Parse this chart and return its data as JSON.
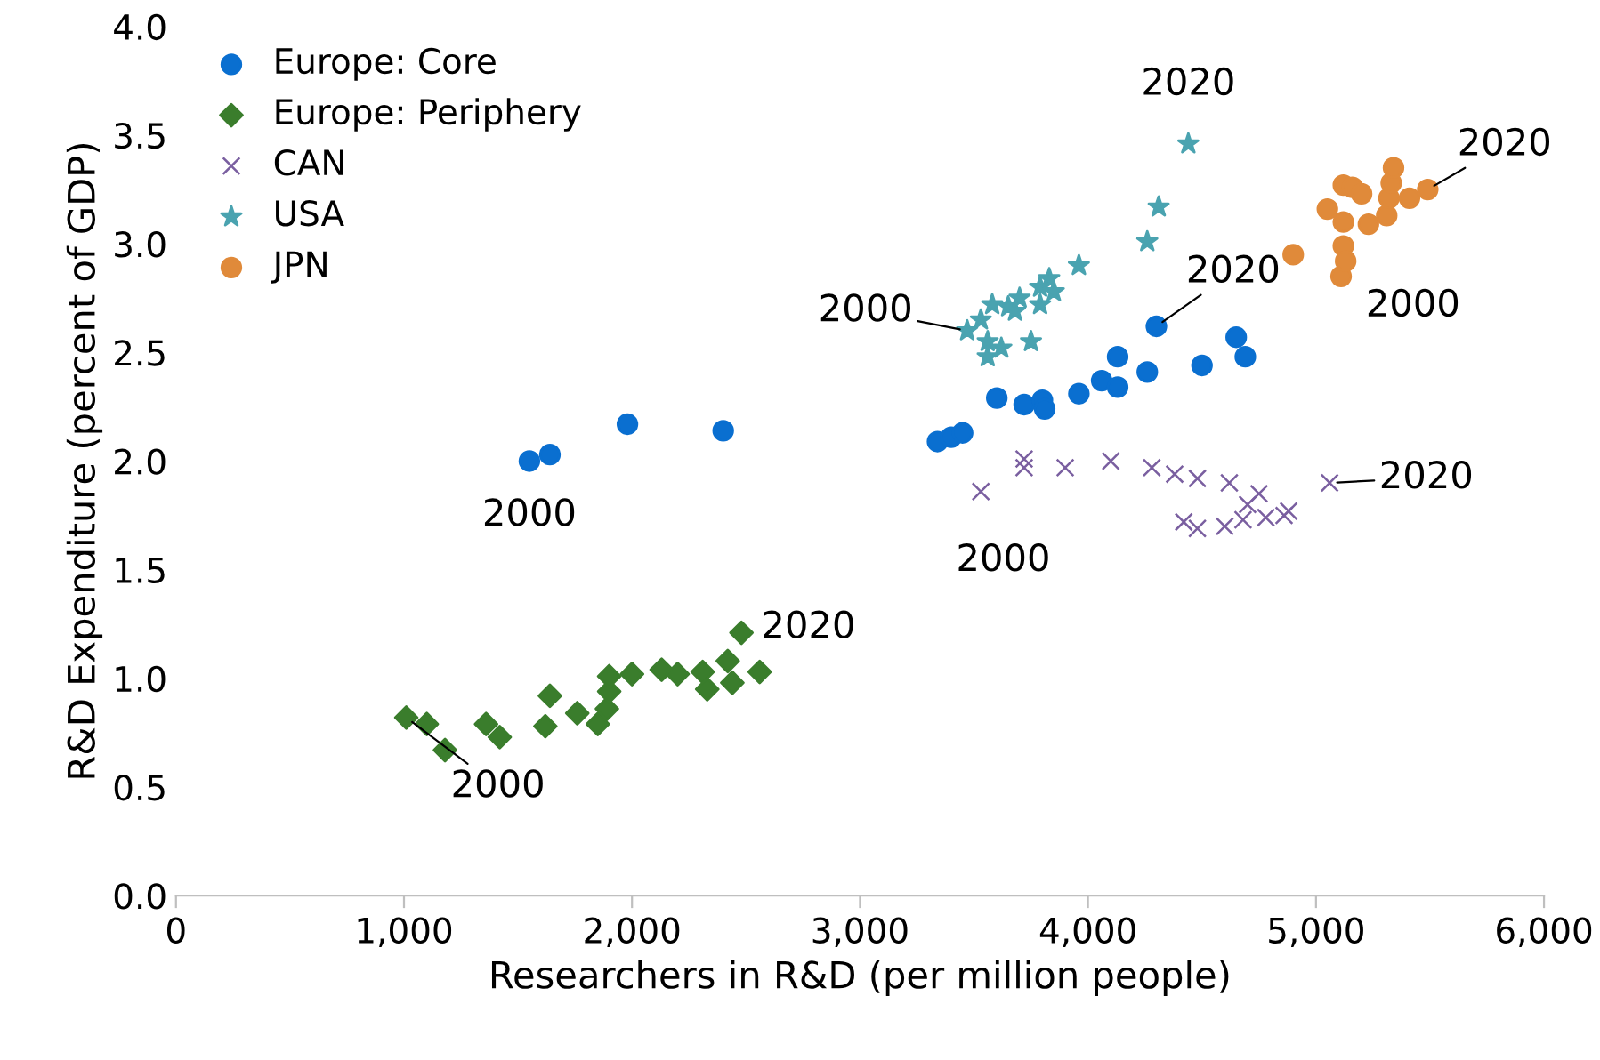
{
  "chart_data": {
    "type": "scatter",
    "xlabel": "Researchers in R&D (per million people)",
    "ylabel": "R&D Expenditure (percent of GDP)",
    "xlim": [
      0,
      6000
    ],
    "xticks": [
      {
        "value": 0,
        "label": "0"
      },
      {
        "value": 1000,
        "label": "1,000"
      },
      {
        "value": 2000,
        "label": "2,000"
      },
      {
        "value": 3000,
        "label": "3,000"
      },
      {
        "value": 4000,
        "label": "4,000"
      },
      {
        "value": 5000,
        "label": "5,000"
      },
      {
        "value": 6000,
        "label": "6,000"
      }
    ],
    "ylim": [
      0,
      4
    ],
    "yticks": [
      {
        "value": 0,
        "label": "0.0"
      },
      {
        "value": 0.5,
        "label": "0.5"
      },
      {
        "value": 1,
        "label": "1.0"
      },
      {
        "value": 1.5,
        "label": "1.5"
      },
      {
        "value": 2,
        "label": "2.0"
      },
      {
        "value": 2.5,
        "label": "2.5"
      },
      {
        "value": 3,
        "label": "3.0"
      },
      {
        "value": 3.5,
        "label": "3.5"
      },
      {
        "value": 4,
        "label": "4.0"
      }
    ],
    "grid": false,
    "legend": "top left",
    "series": [
      {
        "name": "Europe: Core",
        "color": "#0a6fd0",
        "marker": "circle",
        "x": [
          1550,
          1640,
          1980,
          2400,
          3340,
          3400,
          3450,
          3600,
          3720,
          3800,
          3810,
          3960,
          4060,
          4130,
          4130,
          4260,
          4300,
          4500,
          4650,
          4690
        ],
        "values": [
          2.0,
          2.03,
          2.17,
          2.14,
          2.09,
          2.11,
          2.13,
          2.29,
          2.26,
          2.28,
          2.24,
          2.31,
          2.37,
          2.34,
          2.48,
          2.41,
          2.62,
          2.44,
          2.57,
          2.48
        ]
      },
      {
        "name": "Europe: Periphery",
        "color": "#3a7d2c",
        "marker": "diamond",
        "x": [
          1010,
          1100,
          1180,
          1360,
          1420,
          1620,
          1640,
          1760,
          1850,
          1890,
          1900,
          1900,
          2000,
          2130,
          2200,
          2310,
          2330,
          2440,
          2420,
          2480,
          2560
        ],
        "values": [
          0.82,
          0.79,
          0.67,
          0.79,
          0.73,
          0.78,
          0.92,
          0.84,
          0.79,
          0.86,
          0.94,
          1.01,
          1.02,
          1.04,
          1.02,
          1.03,
          0.95,
          0.98,
          1.08,
          1.21,
          1.03
        ]
      },
      {
        "name": "CAN",
        "color": "#7a5fa0",
        "marker": "cross",
        "x": [
          3530,
          3720,
          3720,
          3900,
          4100,
          4280,
          4380,
          4480,
          4620,
          4420,
          4480,
          4600,
          4680,
          4700,
          4750,
          4780,
          4860,
          4880,
          5060
        ],
        "values": [
          1.86,
          2.01,
          1.97,
          1.97,
          2.0,
          1.97,
          1.94,
          1.92,
          1.9,
          1.72,
          1.69,
          1.7,
          1.73,
          1.8,
          1.85,
          1.74,
          1.75,
          1.77,
          1.9
        ]
      },
      {
        "name": "USA",
        "color": "#4aa3b0",
        "marker": "star",
        "x": [
          3470,
          3530,
          3560,
          3560,
          3580,
          3620,
          3650,
          3680,
          3700,
          3750,
          3790,
          3790,
          3830,
          3850,
          3960,
          4260,
          4310,
          4440
        ],
        "values": [
          2.6,
          2.65,
          2.55,
          2.48,
          2.72,
          2.52,
          2.71,
          2.69,
          2.75,
          2.55,
          2.8,
          2.72,
          2.84,
          2.78,
          2.9,
          3.01,
          3.17,
          3.46
        ]
      },
      {
        "name": "JPN",
        "color": "#e08a3a",
        "marker": "circle",
        "x": [
          4900,
          5110,
          5120,
          5130,
          5120,
          5050,
          5120,
          5160,
          5200,
          5230,
          5310,
          5320,
          5330,
          5340,
          5410,
          5490
        ],
        "values": [
          2.95,
          2.85,
          2.99,
          2.92,
          3.1,
          3.16,
          3.27,
          3.26,
          3.23,
          3.09,
          3.13,
          3.21,
          3.28,
          3.35,
          3.21,
          3.25
        ]
      }
    ],
    "annotations": [
      {
        "text": "2000",
        "x": 1550,
        "y": 2.0
      },
      {
        "text": "2000",
        "x": 1010,
        "y": 0.82
      },
      {
        "text": "2020",
        "x": 2480,
        "y": 1.21
      },
      {
        "text": "2000",
        "x": 3530,
        "y": 1.86
      },
      {
        "text": "2020",
        "x": 5060,
        "y": 1.9
      },
      {
        "text": "2000",
        "x": 3470,
        "y": 2.6
      },
      {
        "text": "2020",
        "x": 4440,
        "y": 3.46
      },
      {
        "text": "2020",
        "x": 4300,
        "y": 2.62
      },
      {
        "text": "2020",
        "x": 5490,
        "y": 3.25
      },
      {
        "text": "2000",
        "x": 5110,
        "y": 2.85
      }
    ]
  }
}
